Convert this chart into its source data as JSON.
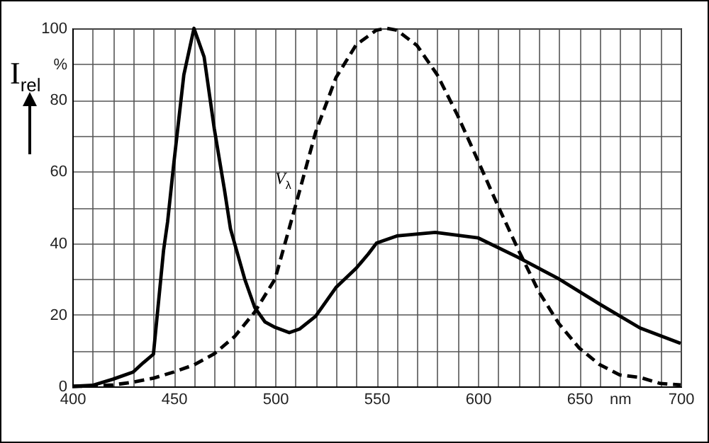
{
  "chart_data": {
    "type": "line",
    "ylabel": "I$_{rel}$",
    "xlim": [
      400,
      700
    ],
    "ylim": [
      0,
      100
    ],
    "xticks": [
      400,
      {
        "value": 410,
        "label": null
      },
      {
        "value": 420,
        "label": null
      },
      {
        "value": 430,
        "label": null
      },
      {
        "value": 440,
        "label": null
      },
      450,
      {
        "value": 460,
        "label": null
      },
      {
        "value": 470,
        "label": null
      },
      {
        "value": 480,
        "label": null
      },
      {
        "value": 490,
        "label": null
      },
      500,
      {
        "value": 510,
        "label": null
      },
      {
        "value": 520,
        "label": null
      },
      {
        "value": 530,
        "label": null
      },
      {
        "value": 540,
        "label": null
      },
      550,
      {
        "value": 560,
        "label": null
      },
      {
        "value": 570,
        "label": null
      },
      {
        "value": 580,
        "label": null
      },
      {
        "value": 590,
        "label": null
      },
      600,
      {
        "value": 610,
        "label": null
      },
      {
        "value": 620,
        "label": null
      },
      {
        "value": 630,
        "label": null
      },
      {
        "value": 640,
        "label": null
      },
      650,
      {
        "value": 660,
        "label": null
      },
      {
        "value": 670,
        "label": "nm"
      },
      {
        "value": 680,
        "label": null
      },
      {
        "value": 690,
        "label": null
      },
      700
    ],
    "yticks": [
      0,
      {
        "value": 10,
        "label": null
      },
      20,
      {
        "value": 30,
        "label": null
      },
      40,
      {
        "value": 50,
        "label": null
      },
      60,
      {
        "value": 70,
        "label": null
      },
      80,
      {
        "value": 90,
        "label": "%"
      },
      100
    ],
    "grid": true,
    "marker": "none",
    "annotations": [
      "V$_{λ}$"
    ],
    "series": [
      {
        "color": "#000000",
        "line_style": "solid",
        "x": [
          400,
          410,
          420,
          430,
          435,
          440,
          445,
          447,
          450,
          455,
          460,
          465,
          470,
          475,
          478,
          480,
          485,
          490,
          495,
          500,
          507,
          512,
          520,
          530,
          540,
          546,
          550,
          560,
          579,
          600,
          620,
          640,
          660,
          680,
          700
        ],
        "values": [
          0,
          0.3,
          2,
          4,
          6.6,
          9,
          38,
          46,
          62,
          87,
          100,
          92,
          72,
          55,
          44,
          40,
          30,
          22,
          18,
          16.5,
          15,
          16,
          19.6,
          27.6,
          33,
          37,
          40,
          42,
          43,
          41.5,
          36,
          30,
          23,
          16.3,
          12
        ]
      },
      {
        "color": "#000000",
        "line_style": "dashed",
        "x": [
          400,
          410,
          420,
          430,
          440,
          450,
          460,
          470,
          480,
          490,
          500,
          510,
          520,
          530,
          540,
          550,
          555,
          560,
          570,
          580,
          590,
          600,
          610,
          620,
          630,
          640,
          650,
          660,
          670,
          680,
          690,
          700
        ],
        "values": [
          0,
          0.1,
          0.4,
          1.2,
          2.3,
          4,
          6,
          9.1,
          13.9,
          20.8,
          30,
          50.3,
          71,
          86.2,
          95.4,
          99.5,
          100,
          99.5,
          95.2,
          87,
          75.7,
          63.1,
          50.3,
          38.1,
          26.5,
          17.5,
          10.7,
          6.1,
          3.2,
          2.5,
          0.8,
          0.4
        ]
      }
    ]
  }
}
